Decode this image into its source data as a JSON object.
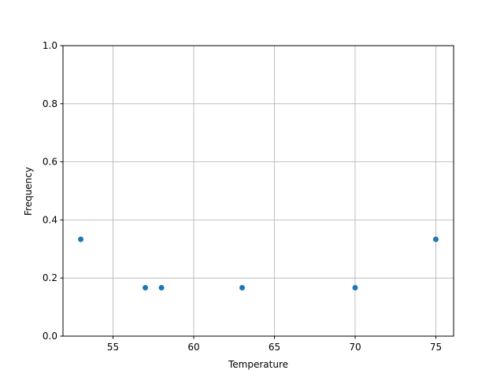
{
  "chart_data": {
    "type": "scatter",
    "title": "",
    "xlabel": "Temperature",
    "ylabel": "Frequency",
    "xlim": [
      51.9,
      76.1
    ],
    "ylim": [
      0,
      1.0
    ],
    "xticks": [
      55,
      60,
      65,
      70,
      75
    ],
    "xtick_labels": [
      "55",
      "60",
      "65",
      "70",
      "75"
    ],
    "yticks": [
      0,
      0.2,
      0.4,
      0.6,
      0.8,
      1.0
    ],
    "ytick_labels": [
      "0.0",
      "0.2",
      "0.4",
      "0.6",
      "0.8",
      "1.0"
    ],
    "grid": true,
    "color": "#1f77b4",
    "points": [
      {
        "x": 53,
        "y": 0.3333
      },
      {
        "x": 57,
        "y": 0.1667
      },
      {
        "x": 58,
        "y": 0.1667
      },
      {
        "x": 63,
        "y": 0.1667
      },
      {
        "x": 70,
        "y": 0.1667
      },
      {
        "x": 75,
        "y": 0.3333
      }
    ]
  }
}
